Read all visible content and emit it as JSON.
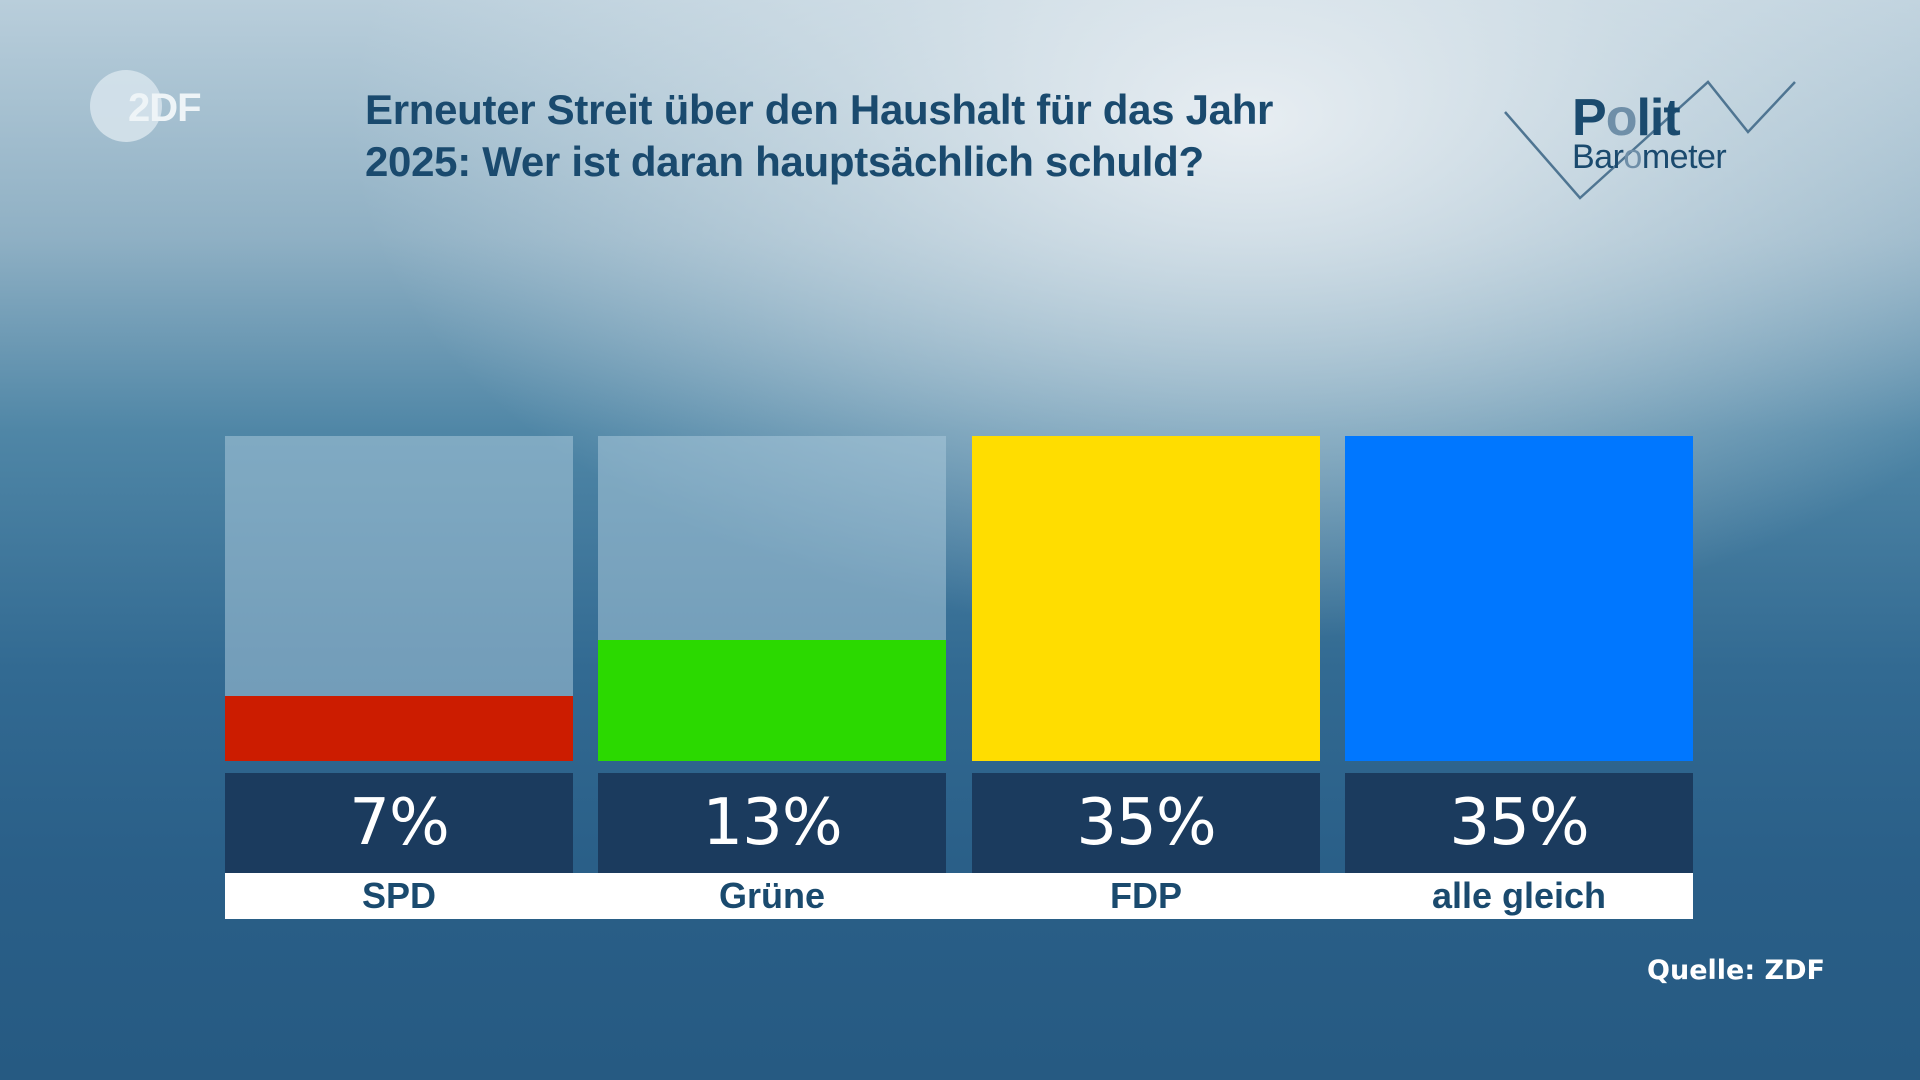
{
  "brand": {
    "logo_text": "2DF",
    "logo_alt": "ZDF"
  },
  "header": {
    "title_line1": "Erneuter Streit über den Haushalt für das Jahr",
    "title_line2": "2025: Wer ist daran hauptsächlich schuld?"
  },
  "politbarometer": {
    "polit_p": "P",
    "polit_o": "o",
    "polit_lit": "lit",
    "baro_bar": "Bar",
    "baro_o": "o",
    "baro_meter": "meter"
  },
  "source": "Quelle: ZDF",
  "chart_data": {
    "type": "bar",
    "title": "Erneuter Streit über den Haushalt für das Jahr 2025: Wer ist daran hauptsächlich schuld?",
    "xlabel": "",
    "ylabel": "",
    "ylim": [
      0,
      35
    ],
    "grid": false,
    "categories": [
      "SPD",
      "Grüne",
      "FDP",
      "alle gleich"
    ],
    "values": [
      7,
      13,
      35,
      35
    ],
    "value_labels": [
      "7%",
      "13%",
      "35%",
      "35%"
    ],
    "colors": [
      "#cc1c00",
      "#2bd900",
      "#ffdd00",
      "#0077ff"
    ],
    "source": "Quelle: ZDF"
  }
}
